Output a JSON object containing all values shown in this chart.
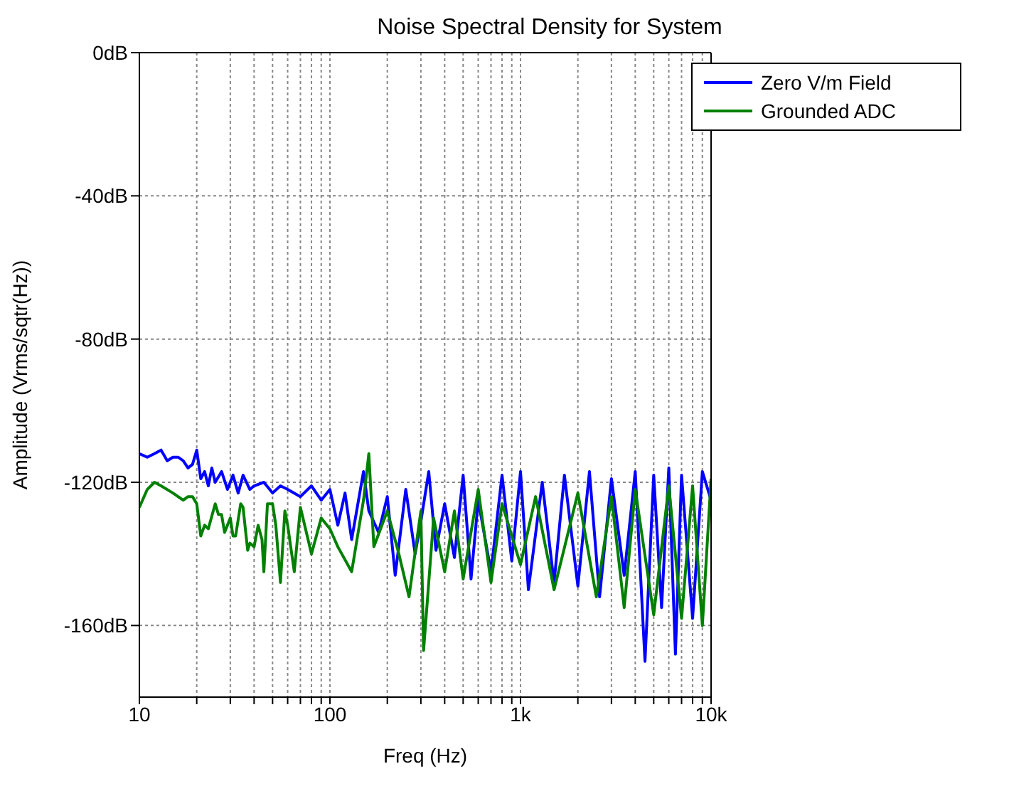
{
  "chart_data": {
    "type": "line",
    "title": "Noise Spectral Density for System",
    "xlabel": "Freq (Hz)",
    "ylabel": "Amplitude (Vrms/sqtr(Hz))",
    "log": "x",
    "grid": true,
    "legend": "top right",
    "line_style": "solid",
    "xlim": [
      10,
      10000
    ],
    "ylim": [
      -180,
      0
    ],
    "xticks": [
      10,
      {
        "value": 20,
        "label": null
      },
      {
        "value": 30,
        "label": null
      },
      {
        "value": 40,
        "label": null
      },
      {
        "value": 50,
        "label": null
      },
      {
        "value": 60,
        "label": null
      },
      {
        "value": 70,
        "label": null
      },
      {
        "value": 80,
        "label": null
      },
      {
        "value": 90,
        "label": null
      },
      100,
      {
        "value": 200,
        "label": null
      },
      {
        "value": 300,
        "label": null
      },
      {
        "value": 400,
        "label": null
      },
      {
        "value": 500,
        "label": null
      },
      {
        "value": 600,
        "label": null
      },
      {
        "value": 700,
        "label": null
      },
      {
        "value": 800,
        "label": null
      },
      {
        "value": 900,
        "label": null
      },
      {
        "value": 1000,
        "label": "1k"
      },
      {
        "value": 2000,
        "label": null
      },
      {
        "value": 3000,
        "label": null
      },
      {
        "value": 4000,
        "label": null
      },
      {
        "value": 5000,
        "label": null
      },
      {
        "value": 6000,
        "label": null
      },
      {
        "value": 7000,
        "label": null
      },
      {
        "value": 8000,
        "label": null
      },
      {
        "value": 9000,
        "label": null
      },
      {
        "value": 10000,
        "label": "10k"
      }
    ],
    "yticks": [
      {
        "value": -160,
        "label": "-160dB"
      },
      {
        "value": -120,
        "label": "-120dB"
      },
      {
        "value": -80,
        "label": "-80dB"
      },
      {
        "value": -40,
        "label": "-40dB"
      },
      {
        "value": 0,
        "label": "0dB"
      }
    ],
    "series": [
      {
        "name": "Zero V/m Field",
        "color": "#0000ff",
        "x": [
          10,
          11,
          12,
          13,
          14,
          15,
          16,
          17,
          18,
          19,
          20,
          21,
          22,
          23,
          24,
          25,
          27,
          29,
          31,
          33,
          35,
          38,
          40,
          45,
          50,
          55,
          60,
          70,
          80,
          90,
          100,
          110,
          120,
          130,
          150,
          160,
          180,
          200,
          220,
          250,
          280,
          300,
          330,
          360,
          400,
          450,
          500,
          550,
          600,
          700,
          800,
          900,
          1000,
          1100,
          1300,
          1500,
          1700,
          2000,
          2300,
          2600,
          3000,
          3500,
          4000,
          4500,
          5000,
          5500,
          6000,
          6500,
          7000,
          8000,
          9000,
          10000
        ],
        "values": [
          -112,
          -113,
          -112,
          -111,
          -114,
          -113,
          -113,
          -114,
          -116,
          -115,
          -111,
          -119,
          -117,
          -121,
          -116,
          -120,
          -117,
          -122,
          -118,
          -123,
          -118,
          -122,
          -121,
          -120,
          -123,
          -121,
          -122,
          -124,
          -121,
          -125,
          -122,
          -132,
          -123,
          -136,
          -117,
          -128,
          -134,
          -124,
          -146,
          -122,
          -140,
          -131,
          -117,
          -139,
          -126,
          -141,
          -118,
          -147,
          -125,
          -145,
          -118,
          -142,
          -117,
          -150,
          -120,
          -148,
          -118,
          -149,
          -117,
          -152,
          -119,
          -146,
          -117,
          -170,
          -118,
          -155,
          -116,
          -168,
          -118,
          -158,
          -117,
          -125
        ]
      },
      {
        "name": "Grounded ADC",
        "color": "#008000",
        "x": [
          10,
          11,
          12,
          13,
          15,
          17,
          18,
          19,
          20,
          21,
          22,
          23,
          25,
          26,
          27,
          28,
          30,
          31,
          32,
          34,
          35,
          37,
          38,
          40,
          42,
          44,
          45,
          47,
          50,
          52,
          55,
          58,
          60,
          65,
          70,
          80,
          90,
          100,
          110,
          130,
          150,
          160,
          170,
          200,
          230,
          260,
          300,
          310,
          350,
          400,
          450,
          500,
          600,
          700,
          800,
          1000,
          1200,
          1500,
          2000,
          2500,
          3000,
          3500,
          4000,
          5000,
          6000,
          7000,
          8000,
          9000,
          10000
        ],
        "values": [
          -127,
          -122,
          -120,
          -121,
          -123,
          -125,
          -124,
          -124,
          -126,
          -135,
          -132,
          -133,
          -126,
          -129,
          -129,
          -134,
          -130,
          -135,
          -135,
          -126,
          -127,
          -139,
          -137,
          -138,
          -132,
          -136,
          -145,
          -126,
          -126,
          -132,
          -148,
          -128,
          -132,
          -145,
          -127,
          -140,
          -130,
          -133,
          -138,
          -145,
          -125,
          -112,
          -138,
          -128,
          -140,
          -152,
          -128,
          -167,
          -130,
          -145,
          -128,
          -147,
          -122,
          -148,
          -126,
          -143,
          -124,
          -150,
          -123,
          -152,
          -124,
          -155,
          -122,
          -157,
          -121,
          -158,
          -121,
          -160,
          -119
        ]
      }
    ]
  }
}
